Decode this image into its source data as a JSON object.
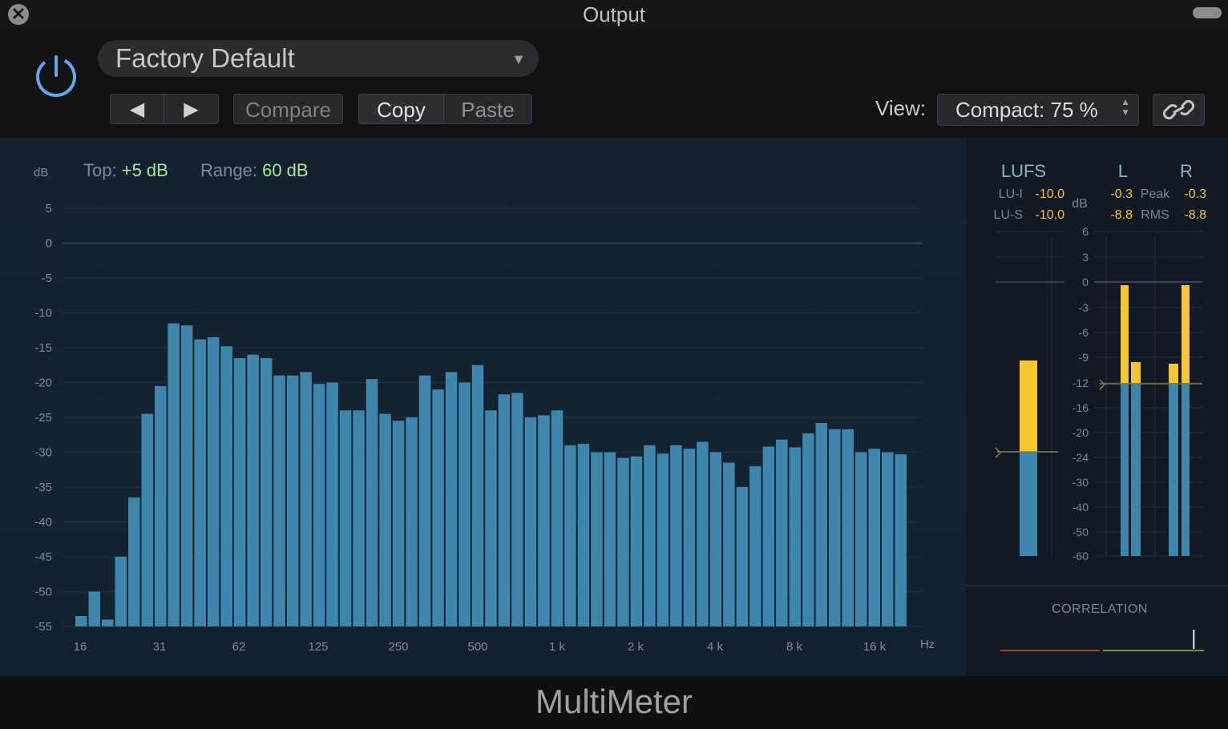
{
  "window": {
    "title": "Output"
  },
  "header": {
    "preset": "Factory Default",
    "compare_label": "Compare",
    "copy_label": "Copy",
    "paste_label": "Paste",
    "view_label": "View:",
    "view_value": "Compact: 75 %"
  },
  "spectrum": {
    "db_unit": "dB",
    "top_label": "Top:",
    "top_value": "+5 dB",
    "range_label": "Range:",
    "range_value": "60 dB",
    "hz_unit": "Hz",
    "bar_color": "#3f86ad",
    "y_ticks": [
      "5",
      "0",
      "-5",
      "-10",
      "-15",
      "-20",
      "-25",
      "-30",
      "-35",
      "-40",
      "-45",
      "-50",
      "-55"
    ],
    "x_ticks": [
      "16",
      "31",
      "62",
      "125",
      "250",
      "500",
      "1 k",
      "2 k",
      "4 k",
      "8 k",
      "16 k"
    ]
  },
  "chart_data": {
    "type": "bar",
    "ylabel": "dB",
    "xlabel": "Hz",
    "ylim": [
      -55,
      5
    ],
    "x_tick_labels": [
      "16",
      "31",
      "62",
      "125",
      "250",
      "500",
      "1 k",
      "2 k",
      "4 k",
      "8 k",
      "16 k"
    ],
    "values": [
      -53.5,
      -50,
      -54,
      -45,
      -36.5,
      -24.5,
      -20.5,
      -11.5,
      -11.8,
      -13.8,
      -13.5,
      -14.8,
      -16.5,
      -16,
      -16.5,
      -19,
      -19,
      -18.5,
      -20.2,
      -20,
      -24,
      -24,
      -19.5,
      -24.5,
      -25.5,
      -25,
      -19,
      -21,
      -18.5,
      -20,
      -17.5,
      -24,
      -21.7,
      -21.5,
      -25,
      -24.7,
      -24,
      -29,
      -28.8,
      -30,
      -30,
      -30.8,
      -30.6,
      -29,
      -30.2,
      -29,
      -29.5,
      -28.5,
      -30,
      -31.5,
      -35,
      -32,
      -29.2,
      -28.2,
      -29.3,
      -27.3,
      -25.8,
      -26.7,
      -26.7,
      -30,
      -29.5,
      -30,
      -30.3
    ],
    "bar_color": "#3f86ad"
  },
  "meters": {
    "lufs_label": "LUFS",
    "l_label": "L",
    "r_label": "R",
    "lu_i_label": "LU-I",
    "lu_i_value": "-10.0",
    "lu_s_label": "LU-S",
    "lu_s_value": "-10.0",
    "peak_label": "Peak",
    "rms_label": "RMS",
    "l_peak": "-0.3",
    "r_peak": "-0.3",
    "l_rms": "-8.8",
    "r_rms": "-8.8",
    "db_unit": "dB",
    "scale": [
      "6",
      "3",
      "0",
      "-3",
      "-6",
      "-9",
      "-12",
      "-16",
      "-20",
      "-24",
      "-30",
      "-40",
      "-50",
      "-60"
    ],
    "correlation_label": "CORRELATION",
    "correlation_value": 0.9,
    "peak_color": "#f8c62f",
    "rms_color": "#3f86ad"
  },
  "footer": {
    "plugin_name": "MultiMeter"
  }
}
